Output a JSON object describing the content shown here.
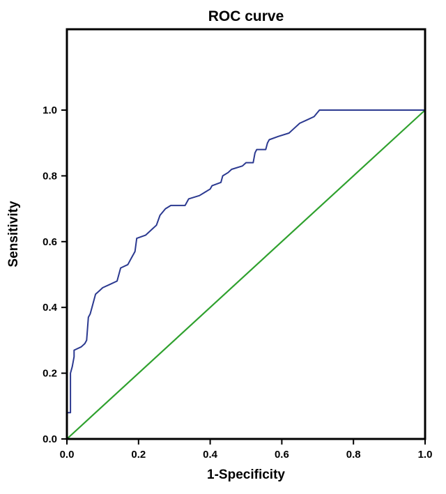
{
  "chart_data": {
    "type": "line",
    "title": "ROC curve",
    "xlabel": "1-Specificity",
    "ylabel": "Sensitivity",
    "xlim": [
      0.0,
      1.0
    ],
    "ylim": [
      0.0,
      1.0
    ],
    "grid": false,
    "legend": "none",
    "background": "#ffffff",
    "border_color": "#000000",
    "x_ticks": [
      0.0,
      0.2,
      0.4,
      0.6,
      0.8,
      1.0
    ],
    "y_ticks": [
      0.0,
      0.2,
      0.4,
      0.6,
      0.8,
      1.0
    ],
    "x_tick_labels": [
      "0.0",
      "0.2",
      "0.4",
      "0.6",
      "0.8",
      "1.0"
    ],
    "y_tick_labels": [
      "0.0",
      "0.2",
      "0.4",
      "0.6",
      "0.8",
      "1.0"
    ],
    "series": [
      {
        "name": "ROC curve",
        "color": "#2b3990",
        "stroke_width": 2,
        "points": [
          [
            0.0,
            0.0
          ],
          [
            0.0,
            0.08
          ],
          [
            0.01,
            0.08
          ],
          [
            0.01,
            0.2
          ],
          [
            0.015,
            0.22
          ],
          [
            0.02,
            0.25
          ],
          [
            0.02,
            0.27
          ],
          [
            0.04,
            0.28
          ],
          [
            0.05,
            0.29
          ],
          [
            0.055,
            0.3
          ],
          [
            0.06,
            0.37
          ],
          [
            0.065,
            0.38
          ],
          [
            0.07,
            0.4
          ],
          [
            0.08,
            0.44
          ],
          [
            0.09,
            0.45
          ],
          [
            0.1,
            0.46
          ],
          [
            0.12,
            0.47
          ],
          [
            0.14,
            0.48
          ],
          [
            0.15,
            0.52
          ],
          [
            0.17,
            0.53
          ],
          [
            0.18,
            0.55
          ],
          [
            0.19,
            0.57
          ],
          [
            0.195,
            0.61
          ],
          [
            0.22,
            0.62
          ],
          [
            0.24,
            0.64
          ],
          [
            0.25,
            0.65
          ],
          [
            0.26,
            0.68
          ],
          [
            0.275,
            0.7
          ],
          [
            0.29,
            0.71
          ],
          [
            0.33,
            0.71
          ],
          [
            0.34,
            0.73
          ],
          [
            0.37,
            0.74
          ],
          [
            0.385,
            0.75
          ],
          [
            0.4,
            0.76
          ],
          [
            0.405,
            0.77
          ],
          [
            0.43,
            0.78
          ],
          [
            0.435,
            0.8
          ],
          [
            0.45,
            0.81
          ],
          [
            0.46,
            0.82
          ],
          [
            0.49,
            0.83
          ],
          [
            0.5,
            0.84
          ],
          [
            0.52,
            0.84
          ],
          [
            0.525,
            0.87
          ],
          [
            0.53,
            0.88
          ],
          [
            0.555,
            0.88
          ],
          [
            0.56,
            0.9
          ],
          [
            0.565,
            0.91
          ],
          [
            0.59,
            0.92
          ],
          [
            0.62,
            0.93
          ],
          [
            0.63,
            0.94
          ],
          [
            0.65,
            0.96
          ],
          [
            0.67,
            0.97
          ],
          [
            0.69,
            0.98
          ],
          [
            0.705,
            1.0
          ],
          [
            0.76,
            1.0
          ],
          [
            1.0,
            1.0
          ]
        ]
      },
      {
        "name": "Reference line",
        "color": "#2fa12e",
        "stroke_width": 2.2,
        "points": [
          [
            0.0,
            0.0
          ],
          [
            1.0,
            1.0
          ]
        ]
      }
    ]
  }
}
